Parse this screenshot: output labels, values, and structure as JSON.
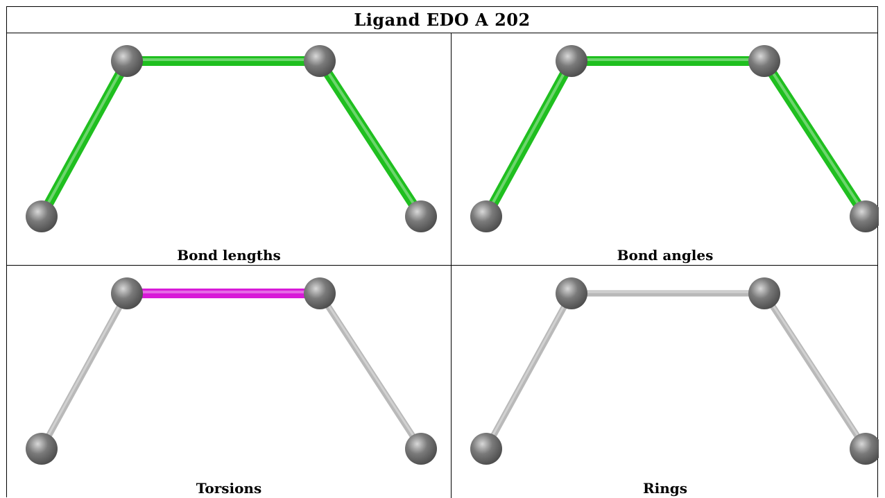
{
  "title": "Ligand EDO A 202",
  "colors": {
    "green": "#1fbf1f",
    "magenta": "#d81ad8",
    "grey": "#b9b9b9",
    "atom": "#7a7a7a"
  },
  "panels": [
    {
      "caption": "Bond lengths",
      "bond_colors": [
        "green",
        "green",
        "green"
      ]
    },
    {
      "caption": "Bond angles",
      "bond_colors": [
        "green",
        "green",
        "green"
      ]
    },
    {
      "caption": "Torsions",
      "bond_colors": [
        "grey",
        "magenta",
        "grey"
      ]
    },
    {
      "caption": "Rings",
      "bond_colors": [
        "grey",
        "grey",
        "grey"
      ]
    }
  ]
}
